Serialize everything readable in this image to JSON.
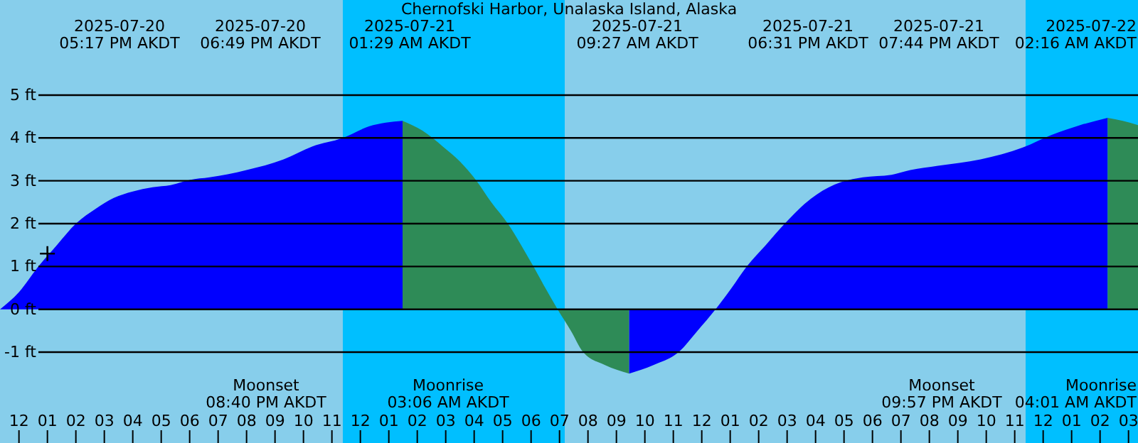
{
  "chart_data": {
    "type": "area",
    "title": "Chernofski Harbor, Unalaska Island, Alaska",
    "xlim": [
      "2025-07-20T11:20",
      "2025-07-22T03:20"
    ],
    "ylim": [
      -3.12,
      7.22
    ],
    "xticks": [
      {
        "value": "2025-07-20T12:00",
        "label": "12"
      },
      {
        "value": "2025-07-20T13:00",
        "label": "01"
      },
      {
        "value": "2025-07-20T14:00",
        "label": "02"
      },
      {
        "value": "2025-07-20T15:00",
        "label": "03"
      },
      {
        "value": "2025-07-20T16:00",
        "label": "04"
      },
      {
        "value": "2025-07-20T17:00",
        "label": "05"
      },
      {
        "value": "2025-07-20T18:00",
        "label": "06"
      },
      {
        "value": "2025-07-20T19:00",
        "label": "07"
      },
      {
        "value": "2025-07-20T20:00",
        "label": "08"
      },
      {
        "value": "2025-07-20T21:00",
        "label": "09"
      },
      {
        "value": "2025-07-20T22:00",
        "label": "10"
      },
      {
        "value": "2025-07-20T23:00",
        "label": "11"
      },
      {
        "value": "2025-07-21T00:00",
        "label": "12"
      },
      {
        "value": "2025-07-21T01:00",
        "label": "01"
      },
      {
        "value": "2025-07-21T02:00",
        "label": "02"
      },
      {
        "value": "2025-07-21T03:00",
        "label": "03"
      },
      {
        "value": "2025-07-21T04:00",
        "label": "04"
      },
      {
        "value": "2025-07-21T05:00",
        "label": "05"
      },
      {
        "value": "2025-07-21T06:00",
        "label": "06"
      },
      {
        "value": "2025-07-21T07:00",
        "label": "07"
      },
      {
        "value": "2025-07-21T08:00",
        "label": "08"
      },
      {
        "value": "2025-07-21T09:00",
        "label": "09"
      },
      {
        "value": "2025-07-21T10:00",
        "label": "10"
      },
      {
        "value": "2025-07-21T11:00",
        "label": "11"
      },
      {
        "value": "2025-07-21T12:00",
        "label": "12"
      },
      {
        "value": "2025-07-21T13:00",
        "label": "01"
      },
      {
        "value": "2025-07-21T14:00",
        "label": "02"
      },
      {
        "value": "2025-07-21T15:00",
        "label": "03"
      },
      {
        "value": "2025-07-21T16:00",
        "label": "04"
      },
      {
        "value": "2025-07-21T17:00",
        "label": "05"
      },
      {
        "value": "2025-07-21T18:00",
        "label": "06"
      },
      {
        "value": "2025-07-21T19:00",
        "label": "07"
      },
      {
        "value": "2025-07-21T20:00",
        "label": "08"
      },
      {
        "value": "2025-07-21T21:00",
        "label": "09"
      },
      {
        "value": "2025-07-21T22:00",
        "label": "10"
      },
      {
        "value": "2025-07-21T23:00",
        "label": "11"
      },
      {
        "value": "2025-07-22T00:00",
        "label": "12"
      },
      {
        "value": "2025-07-22T01:00",
        "label": "01"
      },
      {
        "value": "2025-07-22T02:00",
        "label": "02"
      },
      {
        "value": "2025-07-22T03:00",
        "label": "03"
      }
    ],
    "yticks": [
      {
        "value": -1,
        "label": "-1 ft"
      },
      {
        "value": 0,
        "label": "0 ft"
      },
      {
        "value": 1,
        "label": "1 ft"
      },
      {
        "value": 2,
        "label": "2 ft"
      },
      {
        "value": 3,
        "label": "3 ft"
      },
      {
        "value": 4,
        "label": "4 ft"
      },
      {
        "value": 5,
        "label": "5 ft"
      }
    ],
    "grid": "y",
    "bands": [
      {
        "axis": "x",
        "from": "2025-07-20T11:20",
        "to": "2025-07-20T23:23",
        "color": "#87ceeb"
      },
      {
        "axis": "x",
        "from": "2025-07-20T23:23",
        "to": "2025-07-21T07:11",
        "color": "#00bfff"
      },
      {
        "axis": "x",
        "from": "2025-07-21T07:11",
        "to": "2025-07-21T23:23",
        "color": "#87ceeb"
      },
      {
        "axis": "x",
        "from": "2025-07-21T23:23",
        "to": "2025-07-22T03:20",
        "color": "#00bfff"
      }
    ],
    "series": [
      {
        "color": "#0000ff",
        "x": [
          "2025-07-20T11:20",
          "2025-07-20T12:00",
          "2025-07-20T12:41",
          "2025-07-20T13:20",
          "2025-07-20T14:00",
          "2025-07-20T14:42",
          "2025-07-20T15:20",
          "2025-07-20T16:00",
          "2025-07-20T16:42",
          "2025-07-20T17:20",
          "2025-07-20T18:00",
          "2025-07-20T18:42",
          "2025-07-20T19:20",
          "2025-07-20T20:00",
          "2025-07-20T21:18",
          "2025-07-20T22:18",
          "2025-07-20T23:23",
          "2025-07-21T00:18",
          "2025-07-21T01:29"
        ],
        "values": [
          0.0,
          0.4,
          1.0,
          1.5,
          2.0,
          2.35,
          2.6,
          2.75,
          2.85,
          2.9,
          3.02,
          3.08,
          3.15,
          3.25,
          3.5,
          3.8,
          4.0,
          4.27,
          4.4
        ]
      },
      {
        "color": "#2e8b57",
        "x": [
          "2025-07-21T01:29",
          "2025-07-21T02:11",
          "2025-07-21T02:54",
          "2025-07-21T03:30",
          "2025-07-21T04:05",
          "2025-07-21T04:36",
          "2025-07-21T05:11",
          "2025-07-21T05:39",
          "2025-07-21T06:05",
          "2025-07-21T06:30",
          "2025-07-21T06:56",
          "2025-07-21T07:24",
          "2025-07-21T07:50",
          "2025-07-21T08:36",
          "2025-07-21T09:27"
        ],
        "values": [
          4.4,
          4.17,
          3.8,
          3.45,
          3.0,
          2.5,
          2.0,
          1.5,
          1.0,
          0.5,
          0.0,
          -0.5,
          -1.0,
          -1.3,
          -1.5
        ]
      },
      {
        "color": "#0000ff",
        "x": [
          "2025-07-21T09:27",
          "2025-07-21T10:18",
          "2025-07-21T11:11",
          "2025-07-21T11:51",
          "2025-07-21T12:29",
          "2025-07-21T13:03",
          "2025-07-21T13:35",
          "2025-07-21T14:15",
          "2025-07-21T14:55",
          "2025-07-21T15:50",
          "2025-07-21T16:40",
          "2025-07-21T17:40",
          "2025-07-21T18:40",
          "2025-07-21T19:20",
          "2025-07-21T20:18",
          "2025-07-21T21:48",
          "2025-07-21T23:18",
          "2025-07-22T00:18",
          "2025-07-22T01:18",
          "2025-07-22T02:16"
        ],
        "values": [
          -1.5,
          -1.3,
          -1.0,
          -0.5,
          0.0,
          0.5,
          1.0,
          1.5,
          2.0,
          2.58,
          2.91,
          3.08,
          3.14,
          3.25,
          3.35,
          3.5,
          3.78,
          4.07,
          4.3,
          4.47
        ]
      },
      {
        "color": "#2e8b57",
        "x": [
          "2025-07-22T02:16",
          "2025-07-22T02:48",
          "2025-07-22T03:20"
        ],
        "values": [
          4.47,
          4.4,
          4.3
        ]
      },
      {
        "type": "scatter",
        "color": "#000000",
        "marker": "cross",
        "x": [
          "2025-07-20T13:00"
        ],
        "values": [
          1.3
        ]
      }
    ],
    "annotations": [
      "2025-07-20\n05:17 PM AKDT",
      "2025-07-20\n06:49 PM AKDT",
      "2025-07-21\n01:29 AM AKDT",
      "2025-07-21\n09:27 AM AKDT",
      "2025-07-21\n06:31 PM AKDT",
      "2025-07-21\n07:44 PM AKDT",
      "2025-07-22\n02:16 AM AKDT",
      "Moonset\n08:40 PM AKDT",
      "Moonrise\n03:06 AM AKDT",
      "Moonset\n09:57 PM AKDT",
      "Moonrise\n04:01 AM AKDT"
    ]
  }
}
